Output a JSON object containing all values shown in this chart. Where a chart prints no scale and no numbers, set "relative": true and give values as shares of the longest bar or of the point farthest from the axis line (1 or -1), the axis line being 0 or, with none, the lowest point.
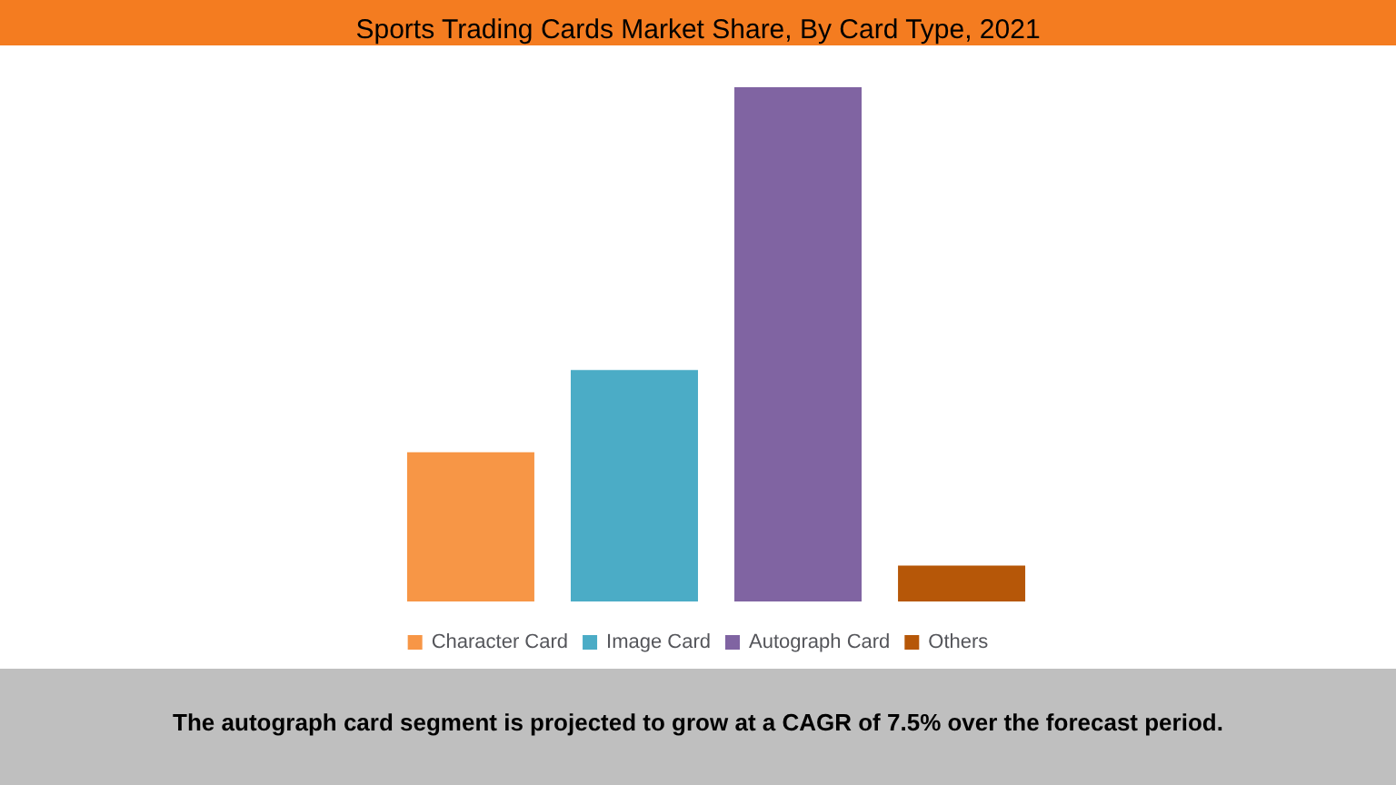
{
  "chart_data": {
    "type": "bar",
    "title": "Sports Trading Cards Market Share, By Card Type, 2021",
    "relative": true,
    "categories": [
      null
    ],
    "series": [
      {
        "name": "Character Card",
        "color": "#f79646",
        "values": [
          0.29
        ]
      },
      {
        "name": "Image Card",
        "color": "#4bacc6",
        "values": [
          0.45
        ]
      },
      {
        "name": "Autograph Card",
        "color": "#8064a2",
        "values": [
          1
        ]
      },
      {
        "name": "Others",
        "color": "#b65708",
        "values": [
          0.07
        ]
      }
    ],
    "legend": "bottom",
    "grid": false,
    "annotations": [
      "The autograph card segment is projected to grow at a CAGR of 7.5% over the forecast period."
    ]
  }
}
